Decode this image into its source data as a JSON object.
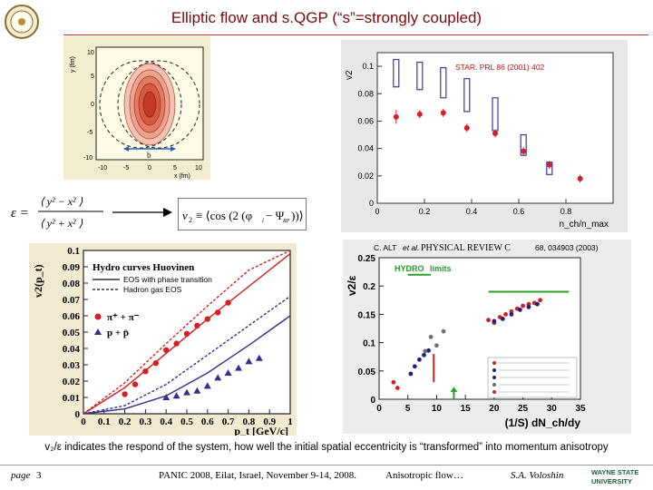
{
  "slide": {
    "title": "Elliptic flow and s.QGP (“s”=strongly coupled)",
    "caption": "v₂/ε indicates the respond of the system, how well the initial spatial eccentricity is “transformed” into momentum anisotropy",
    "footer": {
      "page_label": "page",
      "page_number": "3",
      "conference": "PANIC 2008, Eilat, Israel, November 9-14, 2008.",
      "topic": "Anisotropic flow…",
      "author": "S.A. Voloshin"
    }
  },
  "logos": {
    "left_logo_text": "PANIC 2008",
    "right_logo_line1": "WAYNE STATE",
    "right_logo_line2": "UNIVERSITY"
  },
  "density_panel": {
    "y_label": "y (fm)",
    "x_label": "x (fm)",
    "b_label": "b",
    "y_ticks": [
      "10",
      "5",
      "0",
      "-5",
      "-10"
    ],
    "x_ticks": [
      "-10",
      "-5",
      "0",
      "5",
      "10"
    ]
  },
  "formulas": {
    "eccentricity": "ε = ⟨y² − x²⟩ / ⟨y² + x²⟩",
    "eps_left": "ε =",
    "eps_num": "⟨ y² − x² ⟩",
    "eps_den": "⟨ y² + x² ⟩",
    "v2_def": "v₂ ≡ ⟨cos(2(φ_i − Ψ_RP))⟩",
    "v2_lhs": "v",
    "v2_sub": "2",
    "v2_rhs": "≡ ⟨cos (2 (φ",
    "v2_tail": "− Ψ",
    "v2_end": "))⟩",
    "v2_i": "i",
    "v2_rp": "RP"
  },
  "chart_data": [
    {
      "type": "scatter",
      "id": "star_v2_vs_centrality",
      "annotation": "STAR. PRL 86 (2001) 402",
      "xlabel": "n_ch/n_max",
      "ylabel": "v2",
      "xlim": [
        0,
        1
      ],
      "ylim": [
        0,
        0.11
      ],
      "x_ticks": [
        0,
        0.2,
        0.4,
        0.6,
        0.8
      ],
      "x_tick_labels": [
        "0",
        "0.2",
        "0.4",
        "0.6",
        "0.8"
      ],
      "y_ticks": [
        0,
        0.02,
        0.04,
        0.06,
        0.08,
        0.1
      ],
      "y_tick_labels": [
        "0",
        "0.02",
        "0.04",
        "0.06",
        "0.08",
        "0.1"
      ],
      "series": [
        {
          "kind": "data",
          "color": "#d42020",
          "x": [
            0.08,
            0.18,
            0.28,
            0.38,
            0.5,
            0.62,
            0.73,
            0.86
          ],
          "y": [
            0.063,
            0.065,
            0.066,
            0.055,
            0.051,
            0.038,
            0.028,
            0.018
          ],
          "err": [
            0.005,
            0.003,
            0.003,
            0.003,
            0.003,
            0.003,
            0.003,
            0.003
          ]
        },
        {
          "kind": "hydro-band",
          "color": "#3a3aa0",
          "x": [
            0.08,
            0.18,
            0.28,
            0.38,
            0.5,
            0.62,
            0.73
          ],
          "y_low": [
            0.085,
            0.083,
            0.077,
            0.067,
            0.053,
            0.035,
            0.021
          ],
          "y_high": [
            0.105,
            0.103,
            0.099,
            0.091,
            0.077,
            0.05,
            0.03
          ]
        }
      ]
    },
    {
      "type": "line",
      "id": "v2_vs_pt_hydro",
      "xlabel": "p_t [GeV/c]",
      "ylabel": "v2(p_t)",
      "xlim": [
        0,
        1.0
      ],
      "ylim": [
        0,
        0.1
      ],
      "x_ticks": [
        0,
        0.1,
        0.2,
        0.3,
        0.4,
        0.5,
        0.6,
        0.7,
        0.8,
        0.9,
        1
      ],
      "x_tick_labels": [
        "0",
        "0.1",
        "0.2",
        "0.3",
        "0.4",
        "0.5",
        "0.6",
        "0.7",
        "0.8",
        "0.9",
        "1"
      ],
      "y_ticks": [
        0,
        0.01,
        0.02,
        0.03,
        0.04,
        0.05,
        0.06,
        0.07,
        0.08,
        0.09,
        0.1
      ],
      "y_tick_labels": [
        "0",
        "0.01",
        "0.02",
        "0.03",
        "0.04",
        "0.05",
        "0.06",
        "0.07",
        "0.08",
        "0.09",
        "0.1"
      ],
      "legend_title": "Hydro curves Huovinen",
      "legend": [
        "EOS with phase transition",
        "Hadron gas EOS",
        "π⁺ + π⁻",
        "p + p̄"
      ],
      "legend_placement": "top-left",
      "series": [
        {
          "name": "EOS with phase transition",
          "style": "solid",
          "color": "#d42020",
          "x": [
            0,
            0.2,
            0.4,
            0.6,
            0.8,
            1.0
          ],
          "y": [
            0,
            0.016,
            0.037,
            0.058,
            0.078,
            0.098
          ]
        },
        {
          "name": "Hadron gas EOS",
          "style": "dashed",
          "color": "#d42020",
          "x": [
            0,
            0.2,
            0.4,
            0.6,
            0.8,
            1.0
          ],
          "y": [
            0,
            0.019,
            0.043,
            0.066,
            0.088,
            0.108
          ]
        },
        {
          "name": "EOS with phase transition",
          "style": "solid",
          "color": "#303090",
          "x": [
            0,
            0.2,
            0.4,
            0.6,
            0.8,
            1.0
          ],
          "y": [
            0,
            0.003,
            0.011,
            0.025,
            0.042,
            0.06
          ]
        },
        {
          "name": "Hadron gas EOS",
          "style": "dashed",
          "color": "#303090",
          "x": [
            0,
            0.2,
            0.4,
            0.6,
            0.8,
            1.0
          ],
          "y": [
            0,
            0.005,
            0.018,
            0.036,
            0.054,
            0.072
          ]
        },
        {
          "name": "π⁺ + π⁻",
          "kind": "points",
          "marker": "circle",
          "color": "#d42020",
          "x": [
            0.2,
            0.25,
            0.3,
            0.35,
            0.4,
            0.45,
            0.5,
            0.55,
            0.6,
            0.65,
            0.7
          ],
          "y": [
            0.012,
            0.018,
            0.026,
            0.031,
            0.039,
            0.043,
            0.049,
            0.054,
            0.058,
            0.062,
            0.068
          ]
        },
        {
          "name": "p + p̄",
          "kind": "points",
          "marker": "triangle",
          "color": "#303090",
          "x": [
            0.4,
            0.45,
            0.5,
            0.55,
            0.6,
            0.65,
            0.7,
            0.75,
            0.8,
            0.85
          ],
          "y": [
            0.01,
            0.011,
            0.013,
            0.014,
            0.017,
            0.022,
            0.025,
            0.028,
            0.032,
            0.034
          ]
        }
      ]
    },
    {
      "type": "scatter",
      "id": "v2_over_eps_vs_density",
      "header_author": "C. ALT",
      "header_etal": "et al.",
      "header_journal": "PHYSICAL REVIEW C",
      "header_ref": "68, 034903 (2003)",
      "xlabel": "(1/S) dN_ch/dy",
      "ylabel": "v2/ε",
      "hydro_label": "HYDRO",
      "limits_label": "limits",
      "xlim": [
        0,
        35
      ],
      "ylim": [
        0,
        0.25
      ],
      "x_ticks": [
        0,
        5,
        10,
        15,
        20,
        25,
        30,
        35
      ],
      "x_tick_labels": [
        "0",
        "5",
        "10",
        "15",
        "20",
        "25",
        "30",
        "35"
      ],
      "y_ticks": [
        0,
        0.05,
        0.1,
        0.15,
        0.2,
        0.25
      ],
      "y_tick_labels": [
        "0",
        "0.05",
        "0.1",
        "0.15",
        "0.2",
        "0.25"
      ],
      "hydro_limits": [
        {
          "x_from": 5,
          "x_to": 9,
          "y": 0.22
        },
        {
          "x_from": 19,
          "x_to": 33,
          "y": 0.19
        }
      ],
      "series": [
        {
          "color": "#d42020",
          "x": [
            2.5,
            3.2
          ],
          "y": [
            0.03,
            0.02
          ]
        },
        {
          "color": "#202080",
          "x": [
            5.5,
            6.2,
            7.0,
            7.8,
            8.6
          ],
          "y": [
            0.045,
            0.058,
            0.07,
            0.078,
            0.086
          ]
        },
        {
          "color": "#707070",
          "x": [
            8.0,
            9.0,
            10.0,
            11.2
          ],
          "y": [
            0.085,
            0.11,
            0.095,
            0.12
          ]
        },
        {
          "color": "#d42020",
          "x": [
            19,
            20,
            21,
            22,
            23,
            24,
            25,
            26,
            27,
            28
          ],
          "y": [
            0.14,
            0.135,
            0.145,
            0.15,
            0.155,
            0.16,
            0.165,
            0.168,
            0.17,
            0.175
          ]
        },
        {
          "color": "#202080",
          "x": [
            20,
            21.5,
            23,
            24.5,
            26,
            27.5
          ],
          "y": [
            0.138,
            0.142,
            0.15,
            0.158,
            0.163,
            0.168
          ]
        }
      ],
      "legend_placement": "bottom-right"
    }
  ]
}
